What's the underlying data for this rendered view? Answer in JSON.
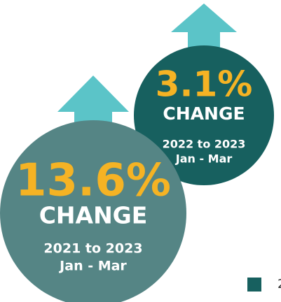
{
  "badges": [
    {
      "value": "3.1%",
      "label": "CHANGE",
      "period": "2022 to 2023",
      "months": "Jan - Mar"
    },
    {
      "value": "13.6%",
      "label": "CHANGE",
      "period": "2021 to 2023",
      "months": "Jan - Mar"
    }
  ],
  "legend": {
    "text": "2"
  }
}
